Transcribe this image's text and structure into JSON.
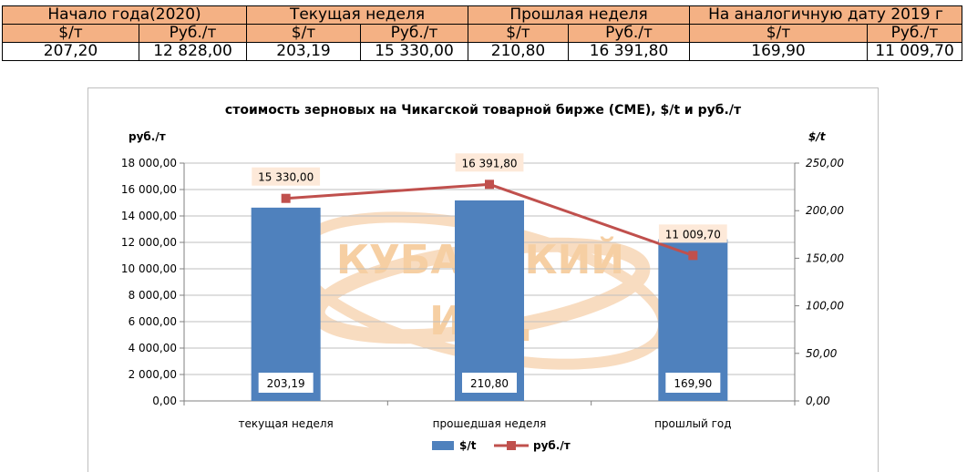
{
  "table": {
    "headers": [
      "Начало года(2020)",
      "Текущая неделя",
      "Прошлая неделя",
      "На аналогичную дату 2019 г"
    ],
    "units": [
      "$/т",
      "Руб./т",
      "$/т",
      "Руб./т",
      "$/т",
      "Руб./т",
      "$/т",
      "Руб./т"
    ],
    "values": [
      "207,20",
      "12 828,00",
      "203,19",
      "15 330,00",
      "210,80",
      "16 391,80",
      "169,90",
      "11 009,70"
    ]
  },
  "watermark": {
    "line1": "КУБАНСКИЙ",
    "line2": "ИАЦ"
  },
  "chart_data": {
    "type": "bar",
    "title": "стоимость зерновых на Чикагской товарной бирже (CME), $/t и руб./т",
    "ylabel_left": "руб./т",
    "ylabel_right": "$/t",
    "categories": [
      "текущая неделя",
      "прошедшая неделя",
      "прошлый год"
    ],
    "ylim_left": [
      0,
      18000
    ],
    "ylim_right": [
      0,
      250
    ],
    "left_ticks": [
      "0,00",
      "2 000,00",
      "4 000,00",
      "6 000,00",
      "8 000,00",
      "10 000,00",
      "12 000,00",
      "14 000,00",
      "16 000,00",
      "18 000,00"
    ],
    "right_ticks": [
      "0,00",
      "50,00",
      "100,00",
      "150,00",
      "200,00",
      "250,00"
    ],
    "series": [
      {
        "name": "$/t",
        "type": "bar",
        "axis": "right",
        "color": "#4f81bd",
        "values": [
          203.19,
          210.8,
          169.9
        ],
        "labels": [
          "203,19",
          "210,80",
          "169,90"
        ]
      },
      {
        "name": "руб./т",
        "type": "line",
        "axis": "left",
        "color": "#c0504d",
        "values": [
          15330.0,
          16391.8,
          11009.7
        ],
        "labels": [
          "15 330,00",
          "16 391,80",
          "11 009,70"
        ]
      }
    ],
    "grid": true,
    "legend": "bottom"
  }
}
